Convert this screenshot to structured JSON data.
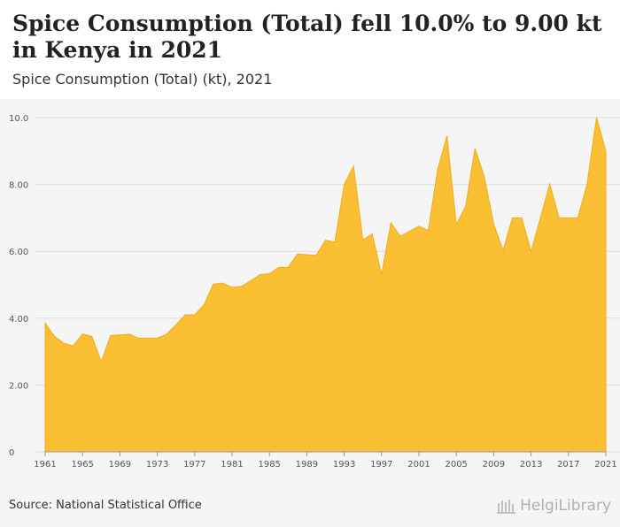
{
  "header": {
    "title": "Spice Consumption (Total) fell 10.0% to 9.00 kt in Kenya in 2021",
    "subtitle": "Spice Consumption (Total) (kt), 2021"
  },
  "footer": {
    "source": "Source: National Statistical Office",
    "logo_text": "HelgiLibrary"
  },
  "colors": {
    "area_fill": "#fbbf33",
    "area_stroke": "#f0ad1a",
    "grid": "#dddddd"
  },
  "chart_data": {
    "type": "area",
    "title": "Spice Consumption (Total) (kt), 2021",
    "xlabel": "",
    "ylabel": "",
    "ylim": [
      0,
      10
    ],
    "yticks": [
      0,
      2,
      4,
      6,
      8,
      10
    ],
    "ytick_labels": [
      "0",
      "2.00",
      "4.00",
      "6.00",
      "8.00",
      "10.0"
    ],
    "xticks": [
      1961,
      1965,
      1969,
      1973,
      1977,
      1981,
      1985,
      1989,
      1993,
      1997,
      2001,
      2005,
      2009,
      2013,
      2017,
      2021
    ],
    "xlim": [
      1961,
      2021
    ],
    "grid": true,
    "series": [
      {
        "name": "Spice Consumption (Total) (kt)",
        "x": [
          1961,
          1962,
          1963,
          1964,
          1965,
          1966,
          1967,
          1968,
          1969,
          1970,
          1971,
          1972,
          1973,
          1974,
          1975,
          1976,
          1977,
          1978,
          1979,
          1980,
          1981,
          1982,
          1983,
          1984,
          1985,
          1986,
          1987,
          1988,
          1989,
          1990,
          1991,
          1992,
          1993,
          1994,
          1995,
          1996,
          1997,
          1998,
          1999,
          2000,
          2001,
          2002,
          2003,
          2004,
          2005,
          2006,
          2007,
          2008,
          2009,
          2010,
          2011,
          2012,
          2013,
          2014,
          2015,
          2016,
          2017,
          2018,
          2019,
          2020,
          2021
        ],
        "values": [
          3.85,
          3.45,
          3.25,
          3.17,
          3.53,
          3.45,
          2.7,
          3.48,
          3.5,
          3.52,
          3.4,
          3.4,
          3.4,
          3.52,
          3.8,
          4.1,
          4.1,
          4.4,
          5.02,
          5.05,
          4.92,
          4.95,
          5.12,
          5.3,
          5.33,
          5.52,
          5.52,
          5.92,
          5.9,
          5.88,
          6.33,
          6.28,
          8.0,
          8.55,
          6.34,
          6.52,
          5.3,
          6.85,
          6.45,
          6.6,
          6.75,
          6.62,
          8.45,
          9.45,
          6.8,
          7.35,
          9.08,
          8.22,
          6.82,
          6.02,
          7.0,
          7.0,
          6.0,
          7.0,
          8.02,
          7.0,
          7.0,
          7.0,
          8.02,
          10.0,
          9.0
        ]
      }
    ]
  }
}
